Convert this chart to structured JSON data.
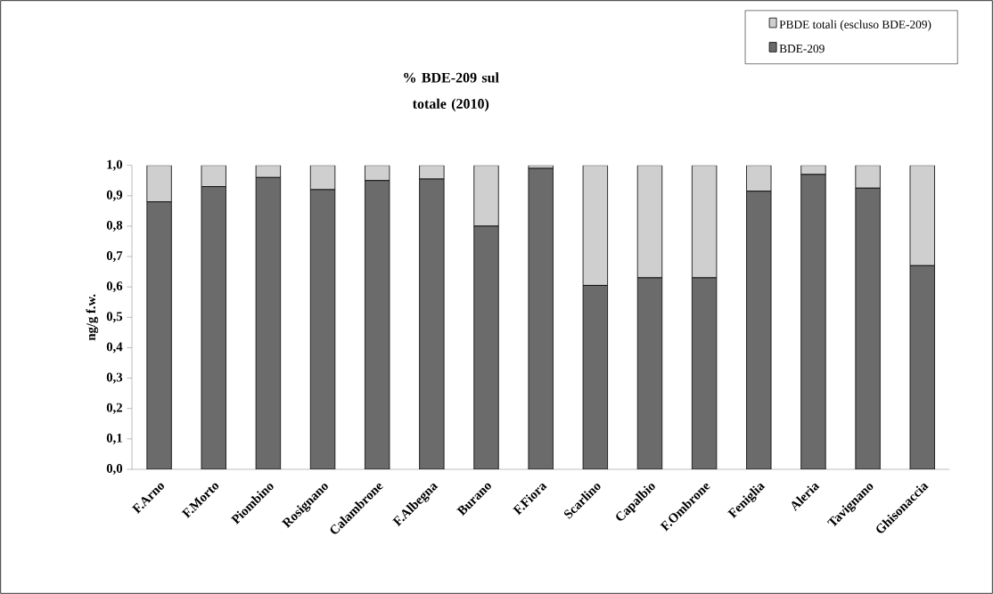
{
  "chart_data": {
    "type": "bar",
    "title": "% BDE-209 sul totale (2010)",
    "ylabel": "ng/g f.w.",
    "categories": [
      "F.Arno",
      "F.Morto",
      "Piombino",
      "Rosignano",
      "Calambrone",
      "F.Albegna",
      "Burano",
      "F.Fiora",
      "Scarlino",
      "Capalbio",
      "F.Ombrone",
      "Feniglia",
      "Aleria",
      "Tavignano",
      "Ghisonaccia"
    ],
    "stacked": true,
    "series": [
      {
        "name": "BDE-209",
        "color": "#6b6b6b",
        "values": [
          0.88,
          0.93,
          0.96,
          0.92,
          0.95,
          0.955,
          0.8,
          0.99,
          0.605,
          0.63,
          0.63,
          0.915,
          0.97,
          0.925,
          0.67
        ]
      },
      {
        "name": "PBDE totali (escluso BDE-209)",
        "color": "#cfcfcf",
        "values": [
          0.12,
          0.07,
          0.04,
          0.08,
          0.05,
          0.045,
          0.2,
          0.01,
          0.395,
          0.37,
          0.37,
          0.085,
          0.03,
          0.075,
          0.33
        ]
      }
    ],
    "ylim": [
      0,
      1
    ],
    "yticks": [
      {
        "value": 0,
        "label": "0,0"
      },
      {
        "value": 0.1,
        "label": "0,1"
      },
      {
        "value": 0.2,
        "label": "0,2"
      },
      {
        "value": 0.3,
        "label": "0,3"
      },
      {
        "value": 0.4,
        "label": "0,4"
      },
      {
        "value": 0.5,
        "label": "0,5"
      },
      {
        "value": 0.6,
        "label": "0,6"
      },
      {
        "value": 0.7,
        "label": "0,7"
      },
      {
        "value": 0.8,
        "label": "0,8"
      },
      {
        "value": 0.9,
        "label": "0,9"
      },
      {
        "value": 1.0,
        "label": "1,0"
      }
    ],
    "legend": "top right",
    "grid": false
  }
}
